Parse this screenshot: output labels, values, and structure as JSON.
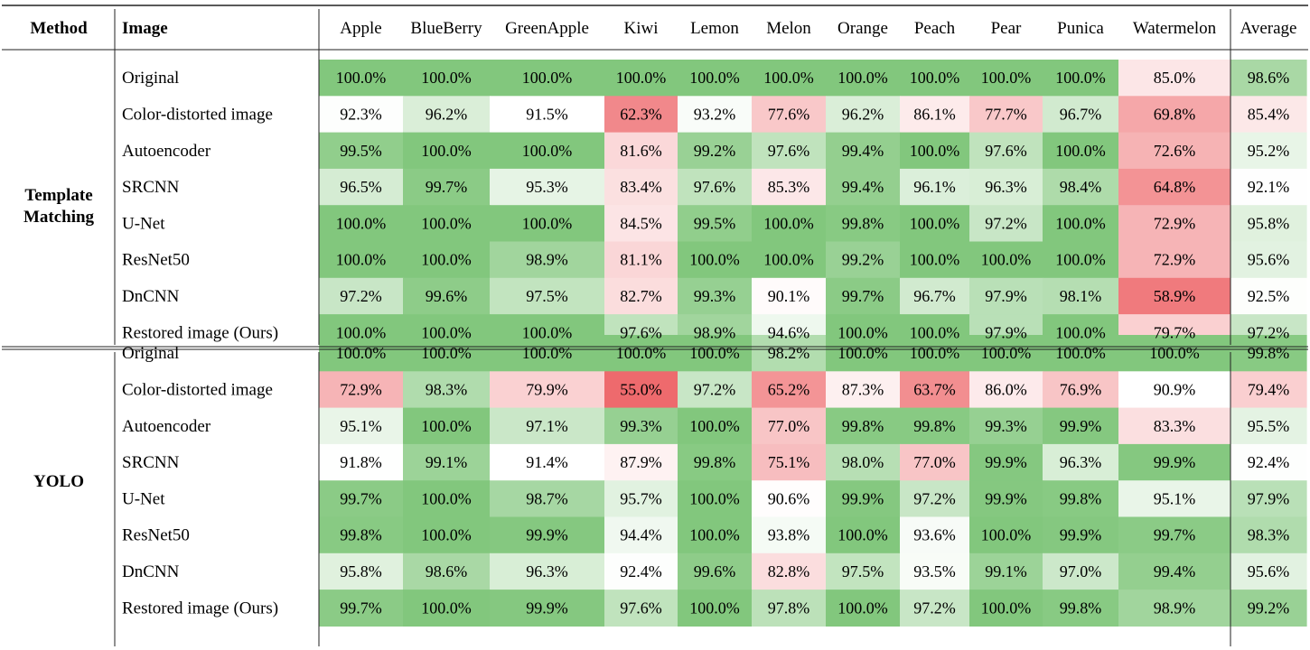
{
  "chart_data": {
    "type": "table",
    "header": {
      "method": "Method",
      "image": "Image",
      "columns": [
        "Apple",
        "BlueBerry",
        "GreenApple",
        "Kiwi",
        "Lemon",
        "Melon",
        "Orange",
        "Peach",
        "Pear",
        "Punica",
        "Watermelon",
        "Average"
      ]
    },
    "groups": [
      {
        "method_lines": [
          "Template",
          "Matching"
        ],
        "rows": [
          {
            "image": "Original",
            "values": [
              100.0,
              100.0,
              100.0,
              100.0,
              100.0,
              100.0,
              100.0,
              100.0,
              100.0,
              100.0,
              85.0,
              98.6
            ]
          },
          {
            "image": "Color-distorted image",
            "values": [
              92.3,
              96.2,
              91.5,
              62.3,
              93.2,
              77.6,
              96.2,
              86.1,
              77.7,
              96.7,
              69.8,
              85.4
            ]
          },
          {
            "image": "Autoencoder",
            "values": [
              99.5,
              100.0,
              100.0,
              81.6,
              99.2,
              97.6,
              99.4,
              100.0,
              97.6,
              100.0,
              72.6,
              95.2
            ]
          },
          {
            "image": "SRCNN",
            "values": [
              96.5,
              99.7,
              95.3,
              83.4,
              97.6,
              85.3,
              99.4,
              96.1,
              96.3,
              98.4,
              64.8,
              92.1
            ]
          },
          {
            "image": "U-Net",
            "values": [
              100.0,
              100.0,
              100.0,
              84.5,
              99.5,
              100.0,
              99.8,
              100.0,
              97.2,
              100.0,
              72.9,
              95.8
            ]
          },
          {
            "image": "ResNet50",
            "values": [
              100.0,
              100.0,
              98.9,
              81.1,
              100.0,
              100.0,
              99.2,
              100.0,
              100.0,
              100.0,
              72.9,
              95.6
            ]
          },
          {
            "image": "DnCNN",
            "values": [
              97.2,
              99.6,
              97.5,
              82.7,
              99.3,
              90.1,
              99.7,
              96.7,
              97.9,
              98.1,
              58.9,
              92.5
            ]
          },
          {
            "image": "Restored image (Ours)",
            "values": [
              100.0,
              100.0,
              100.0,
              97.6,
              98.9,
              94.6,
              100.0,
              100.0,
              97.9,
              100.0,
              79.7,
              97.2
            ]
          }
        ]
      },
      {
        "method_lines": [
          "YOLO"
        ],
        "rows": [
          {
            "image": "Original",
            "values": [
              100.0,
              100.0,
              100.0,
              100.0,
              100.0,
              98.2,
              100.0,
              100.0,
              100.0,
              100.0,
              100.0,
              99.8
            ]
          },
          {
            "image": "Color-distorted image",
            "values": [
              72.9,
              98.3,
              79.9,
              55.0,
              97.2,
              65.2,
              87.3,
              63.7,
              86.0,
              76.9,
              90.9,
              79.4
            ]
          },
          {
            "image": "Autoencoder",
            "values": [
              95.1,
              100.0,
              97.1,
              99.3,
              100.0,
              77.0,
              99.8,
              99.8,
              99.3,
              99.9,
              83.3,
              95.5
            ]
          },
          {
            "image": "SRCNN",
            "values": [
              91.8,
              99.1,
              91.4,
              87.9,
              99.8,
              75.1,
              98.0,
              77.0,
              99.9,
              96.3,
              99.9,
              92.4
            ]
          },
          {
            "image": "U-Net",
            "values": [
              99.7,
              100.0,
              98.7,
              95.7,
              100.0,
              90.6,
              99.9,
              97.2,
              99.9,
              99.8,
              95.1,
              97.9
            ]
          },
          {
            "image": "ResNet50",
            "values": [
              99.8,
              100.0,
              99.9,
              94.4,
              100.0,
              93.8,
              100.0,
              93.6,
              100.0,
              99.9,
              99.7,
              98.3
            ]
          },
          {
            "image": "DnCNN",
            "values": [
              95.8,
              98.6,
              96.3,
              92.4,
              99.6,
              82.8,
              97.5,
              93.5,
              99.1,
              97.0,
              99.4,
              95.6
            ]
          },
          {
            "image": "Restored image (Ours)",
            "values": [
              99.7,
              100.0,
              99.9,
              97.6,
              100.0,
              97.8,
              100.0,
              97.2,
              100.0,
              99.8,
              98.9,
              99.2
            ]
          }
        ]
      }
    ],
    "value_suffix": "%",
    "color_scale": {
      "low": 55.0,
      "mid": 91.0,
      "high": 100.0,
      "low_color": "#ee6a6d",
      "mid_color": "#ffffff",
      "high_color": "#82c77d"
    }
  }
}
